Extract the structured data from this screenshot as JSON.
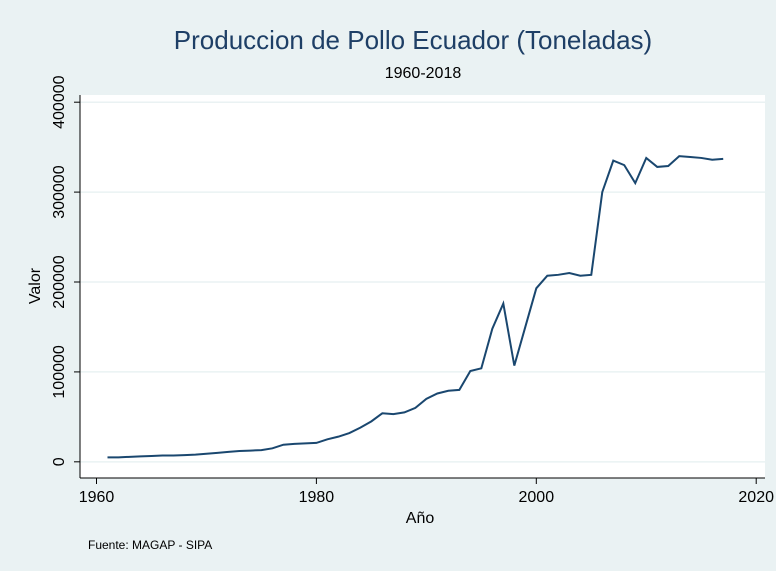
{
  "chart_data": {
    "type": "line",
    "title": "Produccion de Pollo Ecuador (Toneladas)",
    "subtitle": "1960-2018",
    "x_label": "Año",
    "y_label": "Valor",
    "note": "Fuente: MAGAP - SIPA",
    "x": [
      1961,
      1962,
      1963,
      1964,
      1965,
      1966,
      1967,
      1968,
      1969,
      1970,
      1971,
      1972,
      1973,
      1974,
      1975,
      1976,
      1977,
      1978,
      1979,
      1980,
      1981,
      1982,
      1983,
      1984,
      1985,
      1986,
      1987,
      1988,
      1989,
      1990,
      1991,
      1992,
      1993,
      1994,
      1995,
      1996,
      1997,
      1998,
      1999,
      2000,
      2001,
      2002,
      2003,
      2004,
      2005,
      2006,
      2007,
      2008,
      2009,
      2010,
      2011,
      2012,
      2013,
      2014,
      2015,
      2016,
      2017
    ],
    "series": [
      {
        "name": "Valor",
        "color": "#1a476f",
        "values": [
          5000,
          5000,
          5500,
          6000,
          6500,
          7000,
          7000,
          7500,
          8000,
          9000,
          10000,
          11000,
          12000,
          12500,
          13000,
          15000,
          19000,
          20000,
          20500,
          21000,
          25000,
          28000,
          32000,
          38000,
          45000,
          54000,
          53000,
          55000,
          60000,
          70000,
          76000,
          79000,
          80000,
          101000,
          104000,
          148000,
          176000,
          107000,
          150000,
          193000,
          207000,
          208000,
          210000,
          207000,
          208000,
          300000,
          335000,
          330000,
          310000,
          338000,
          328000,
          329000,
          340000,
          339000,
          338000,
          336000,
          337000
        ]
      }
    ],
    "xlim": [
      1958.5,
      2020.8
    ],
    "xticks": [
      1960,
      1980,
      2000,
      2020
    ],
    "ylim": [
      -18000,
      408000
    ],
    "yticks": [
      0,
      100000,
      200000,
      300000,
      400000
    ],
    "grid": true
  }
}
